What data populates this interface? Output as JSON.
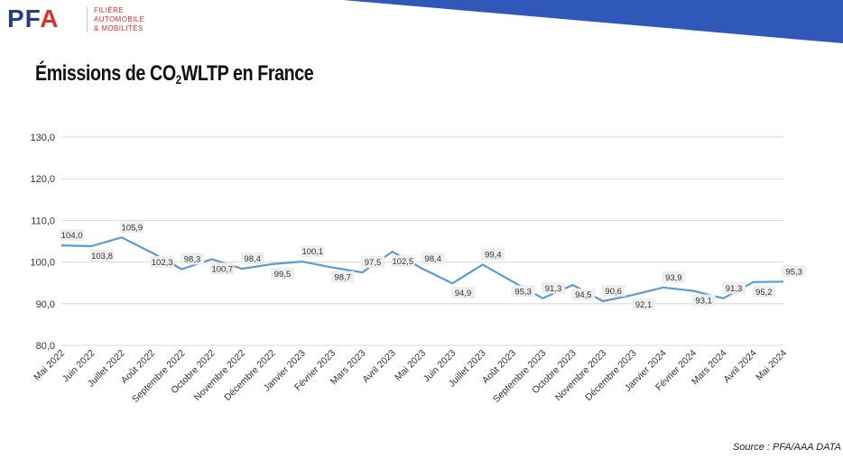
{
  "header": {
    "logo_letters": "PF",
    "logo_accent": "A",
    "logo_lines": [
      "FILIÈRE",
      "AUTOMOBILE",
      "& MOBILITÉS"
    ],
    "band_color": "#2f58b8"
  },
  "title": {
    "prefix": "Émissions de CO",
    "sub": "2",
    "suffix": "WLTP en France"
  },
  "source": "Source : PFA/AAA DATA",
  "chart_data": {
    "type": "line",
    "title": "Émissions de CO2 WLTP en France",
    "xlabel": "",
    "ylabel": "",
    "ylim": [
      80,
      130
    ],
    "yticks": [
      "80,0",
      "90,0",
      "100,0",
      "110,0",
      "120,0",
      "130,0"
    ],
    "grid": true,
    "line_color": "#5b9bd5",
    "categories": [
      "Mai 2022",
      "Juin 2022",
      "Juillet 2022",
      "Août 2022",
      "Septembre 2022",
      "Octobre 2022",
      "Novembre 2022",
      "Décembre 2022",
      "Janvier 2023",
      "Février 2023",
      "Mars 2023",
      "Avril 2023",
      "Mai 2023",
      "Juin 2023",
      "Juillet 2023",
      "Août 2023",
      "Septembre 2023",
      "Octobre 2023",
      "Novembre 2023",
      "Décembre 2023",
      "Janvier 2024",
      "Février 2024",
      "Mars 2024",
      "Avril 2024",
      "Mai 2024"
    ],
    "values": [
      104.0,
      103.8,
      105.9,
      102.3,
      98.3,
      100.7,
      98.4,
      99.5,
      100.1,
      98.7,
      97.5,
      102.5,
      98.4,
      94.9,
      99.4,
      95.3,
      91.3,
      94.5,
      90.6,
      92.1,
      93.9,
      93.1,
      91.3,
      95.2,
      95.3
    ],
    "value_labels": [
      "104,0",
      "103,8",
      "105,9",
      "102,3",
      "98,3",
      "100,7",
      "98,4",
      "99,5",
      "100,1",
      "98,7",
      "97,5",
      "102,5",
      "98,4",
      "94,9",
      "99,4",
      "95,3",
      "91,3",
      "94,5",
      "90,6",
      "92,1",
      "93,9",
      "93,1",
      "91,3",
      "95,2",
      "95,3"
    ]
  }
}
